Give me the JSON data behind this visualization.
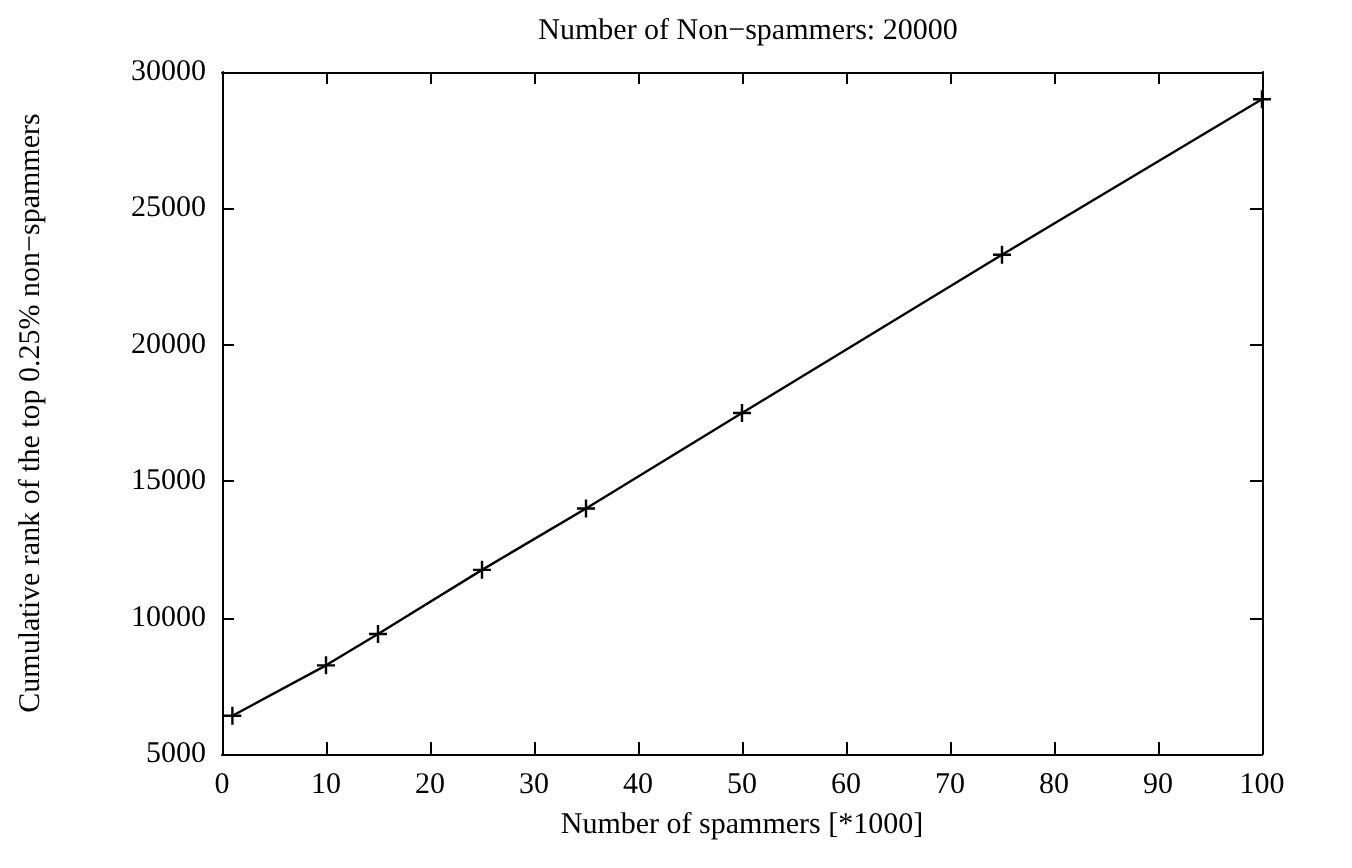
{
  "chart_data": {
    "type": "line",
    "title": "Number of Non−spammers: 20000",
    "xlabel": "Number of spammers [*1000]",
    "ylabel": "Cumulative rank of the top 0.25% non−spammers",
    "x": [
      1,
      10,
      15,
      25,
      35,
      50,
      75,
      100
    ],
    "values": [
      6400,
      8250,
      9400,
      11750,
      14000,
      17500,
      23300,
      29000
    ],
    "color": "#000000",
    "xlim": [
      0,
      100
    ],
    "xticks": [
      0,
      10,
      20,
      30,
      40,
      50,
      60,
      70,
      80,
      90,
      100
    ],
    "ylim": [
      5000,
      30000
    ],
    "yticks": [
      5000,
      10000,
      15000,
      20000,
      25000,
      30000
    ],
    "grid": false,
    "marker": "cross",
    "line_style": "solid"
  }
}
